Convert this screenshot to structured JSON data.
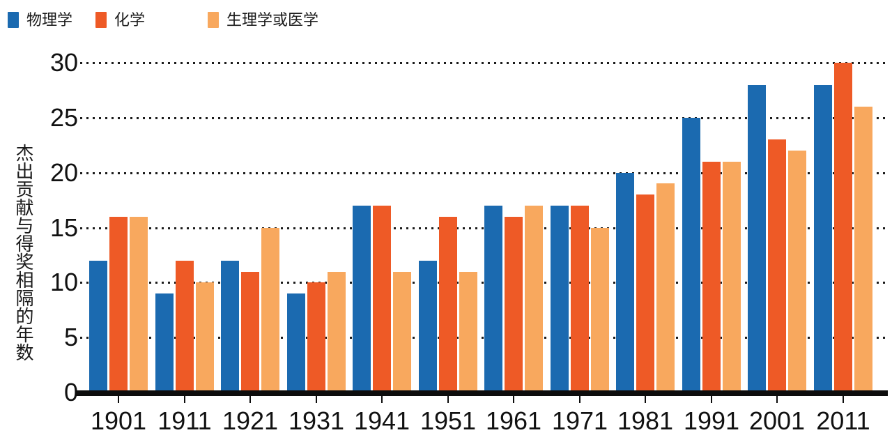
{
  "chart_data": {
    "type": "bar",
    "categories": [
      "1901",
      "1911",
      "1921",
      "1931",
      "1941",
      "1951",
      "1961",
      "1971",
      "1981",
      "1991",
      "2001",
      "2011"
    ],
    "series": [
      {
        "name": "物理学",
        "color": "#1b6ab0",
        "values": [
          12,
          9,
          12,
          9,
          17,
          12,
          17,
          17,
          20,
          25,
          28,
          28
        ]
      },
      {
        "name": "化学",
        "color": "#ee5a26",
        "values": [
          16,
          12,
          11,
          10,
          17,
          16,
          16,
          17,
          18,
          21,
          23,
          30
        ]
      },
      {
        "name": "生理学或医学",
        "color": "#f8a85e",
        "values": [
          16,
          10,
          15,
          11,
          11,
          11,
          17,
          15,
          19,
          21,
          22,
          26
        ]
      }
    ],
    "xlabel": "",
    "ylabel": "杰出贡献与得奖相隔的年数",
    "ylim": [
      0,
      30
    ],
    "yticks": [
      0,
      5,
      10,
      15,
      20,
      25,
      30
    ],
    "grid": true,
    "grid_style": "dotted",
    "legend_position": "top-left"
  }
}
